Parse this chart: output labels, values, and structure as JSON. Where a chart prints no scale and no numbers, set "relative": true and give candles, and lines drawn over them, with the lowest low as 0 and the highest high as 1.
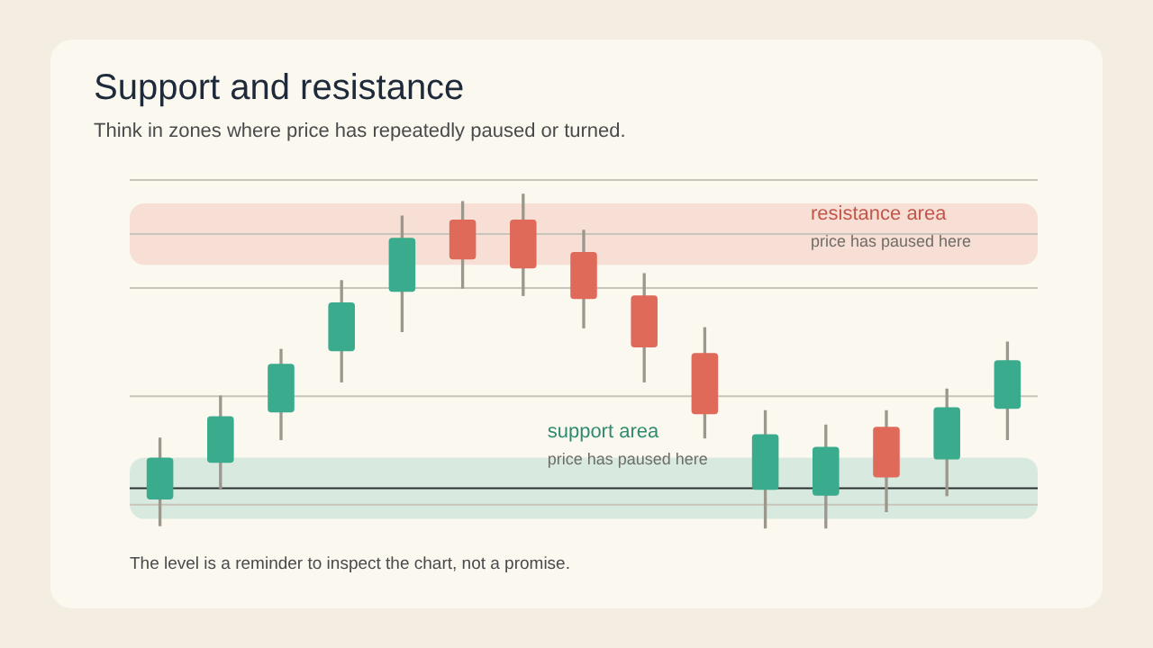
{
  "chart_data": {
    "type": "candlestick",
    "title": "Support and resistance",
    "subtitle": "Think in zones where price has repeatedly paused or turned.",
    "relative": true,
    "categories": [
      null,
      null,
      null,
      null,
      null,
      null,
      null,
      null,
      null,
      null,
      null,
      null,
      null,
      null,
      null
    ],
    "ohlc": [
      [
        0.085,
        0.269,
        0.007,
        0.211
      ],
      [
        0.195,
        0.395,
        0.119,
        0.335
      ],
      [
        0.346,
        0.535,
        0.265,
        0.492
      ],
      [
        0.53,
        0.741,
        0.438,
        0.676
      ],
      [
        0.708,
        0.935,
        0.589,
        0.87
      ],
      [
        0.924,
        0.978,
        0.719,
        0.805
      ],
      [
        0.924,
        1,
        0.697,
        0.778
      ],
      [
        0.827,
        0.892,
        0.6,
        0.686
      ],
      [
        0.697,
        0.762,
        0.438,
        0.541
      ],
      [
        0.524,
        0.6,
        0.27,
        0.341
      ],
      [
        0.114,
        0.351,
        0,
        0.281
      ],
      [
        0.097,
        0.308,
        0,
        0.243
      ],
      [
        0.303,
        0.351,
        0.049,
        0.151
      ],
      [
        0.205,
        0.416,
        0.097,
        0.362
      ],
      [
        0.357,
        0.557,
        0.265,
        0.503
      ]
    ],
    "colors": [
      "#3aab8c",
      "#3aab8c",
      "#3aab8c",
      "#3aab8c",
      "#3aab8c",
      "#e06a5a",
      "#e06a5a",
      "#e06a5a",
      "#e06a5a",
      "#e06a5a",
      "#3aab8c",
      "#3aab8c",
      "#e06a5a",
      "#3aab8c",
      "#3aab8c"
    ],
    "bands": [
      {
        "axis": "y",
        "from": 0.789,
        "to": 0.973,
        "label": "resistance area",
        "color": "#f7dfd6"
      },
      {
        "axis": "y",
        "from": 0.027,
        "to": 0.211,
        "label": "support area",
        "color": "#d8eadf"
      }
    ],
    "ref_lines": [
      {
        "axis": "y",
        "value": 1.043,
        "color": "#c9c4ba"
      },
      {
        "axis": "y",
        "value": 0.881,
        "color": "#c9c4ba"
      },
      {
        "axis": "y",
        "value": 0.719,
        "color": "#c9c4ba"
      },
      {
        "axis": "y",
        "value": 0.395,
        "color": "#c9c4ba"
      },
      {
        "axis": "y",
        "value": 0.07,
        "color": "#c9c4ba"
      },
      {
        "axis": "y",
        "value": 0.119,
        "color": "#2a302e"
      }
    ],
    "annotations": [
      "price has paused here",
      "price has paused here",
      "The level is a reminder to inspect the chart, not a promise."
    ],
    "legend": false
  }
}
